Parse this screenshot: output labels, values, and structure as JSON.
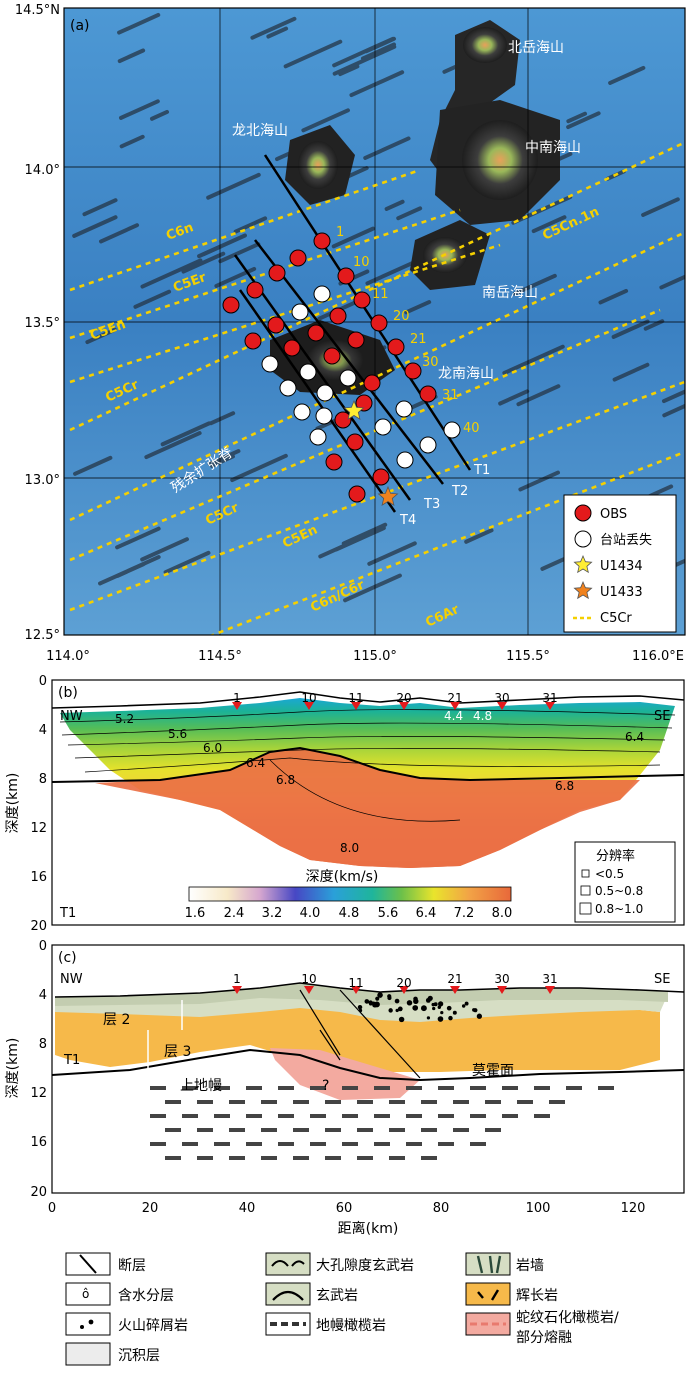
{
  "panel_a": {
    "label": "(a)",
    "y_ticks": [
      {
        "lat": 14.5,
        "label": "14.5°N"
      },
      {
        "lat": 14.0,
        "label": "14.0°"
      },
      {
        "lat": 13.5,
        "label": "13.5°"
      },
      {
        "lat": 13.0,
        "label": "13.0°"
      },
      {
        "lat": 12.5,
        "label": "12.5°"
      }
    ],
    "x_ticks": [
      {
        "lon": 114.0,
        "label": "114.0°"
      },
      {
        "lon": 114.5,
        "label": "114.5°"
      },
      {
        "lon": 115.0,
        "label": "115.0°"
      },
      {
        "lon": 115.5,
        "label": "115.5°"
      },
      {
        "lon": 116.0,
        "label": "116.0°E"
      }
    ],
    "place_labels": {
      "beiyue": "北岳海山",
      "longbei": "龙北海山",
      "zhongnan": "中南海山",
      "nanyue": "南岳海山",
      "longnan": "龙南海山",
      "ridge": "残余扩张脊"
    },
    "magnetic_labels": {
      "c6n": "C6n",
      "c5er": "C5Er",
      "c5en_upper": "C5En",
      "c5cr_upper": "C5Cr",
      "c5cn1n": "C5Cn.1n",
      "c5cr_lower": "C5Cr",
      "c5en_lower": "C5En",
      "c6n_c6r": "C6n/C6r",
      "c6ar": "C6Ar"
    },
    "station_labels": [
      "1",
      "10",
      "11",
      "20",
      "21",
      "30",
      "31",
      "40"
    ],
    "line_labels": [
      "T1",
      "T2",
      "T3",
      "T4"
    ],
    "legend": [
      {
        "label": "OBS",
        "symbol": "red-circle"
      },
      {
        "label": "台站丢失",
        "symbol": "white-circle"
      },
      {
        "label": "U1434",
        "symbol": "yellow-star"
      },
      {
        "label": "U1433",
        "symbol": "orange-star"
      },
      {
        "label": "C5Cr",
        "symbol": "yellow-dotted-line"
      }
    ]
  },
  "panel_b": {
    "label": "(b)",
    "nw": "NW",
    "se": "SE",
    "line_name": "T1",
    "y_ticks": [
      "0",
      "4",
      "8",
      "12",
      "16",
      "20"
    ],
    "ylabel": "深度(km)",
    "station_labels": [
      "1",
      "10",
      "11",
      "20",
      "21",
      "30",
      "31"
    ],
    "contour_labels": [
      "5.2",
      "5.6",
      "6.0",
      "6.4",
      "6.8",
      "8.0",
      "4.4",
      "4.8",
      "6.4",
      "6.8"
    ],
    "colorbar_title": "深度(km/s)",
    "colorbar_ticks": [
      "1.6",
      "2.4",
      "3.2",
      "4.0",
      "4.8",
      "5.6",
      "6.4",
      "7.2",
      "8.0"
    ],
    "resolution_title": "分辨率",
    "resolution_items": [
      "<0.5",
      "0.5~0.8",
      "0.8~1.0"
    ]
  },
  "panel_c": {
    "label": "(c)",
    "nw": "NW",
    "se": "SE",
    "line_name": "T1",
    "y_ticks": [
      "0",
      "4",
      "8",
      "12",
      "16",
      "20"
    ],
    "x_ticks": [
      "0",
      "20",
      "40",
      "60",
      "80",
      "100",
      "120"
    ],
    "xlabel": "距离(km)",
    "ylabel": "深度(km)",
    "station_labels": [
      "1",
      "10",
      "11",
      "20",
      "21",
      "30",
      "31"
    ],
    "layer2": "层 2",
    "layer3": "层 3",
    "upper_mantle": "上地幔",
    "moho": "莫霍面",
    "question": "?"
  },
  "legend_c": {
    "fault": "断层",
    "aquifer": "含水分层",
    "volcaniclastic": "火山碎屑岩",
    "sediment": "沉积层",
    "porous_basalt": "大孔隙度玄武岩",
    "basalt": "玄武岩",
    "mantle_peridotite": "地幔橄榄岩",
    "dike": "岩墙",
    "gabbro": "辉长岩",
    "serpentinite_line1": "蛇纹石化橄榄岩/",
    "serpentinite_line2": "部分熔融"
  },
  "colors": {
    "ocean": "#3d84c4",
    "obs": "#e31a1c",
    "star_yellow": "#ffee33",
    "star_orange": "#f0821e",
    "magnetic": "#f5d000",
    "gabbro": "#f6b94a",
    "basalt": "#d6dec4",
    "serpentinite": "#f3aaa0"
  }
}
